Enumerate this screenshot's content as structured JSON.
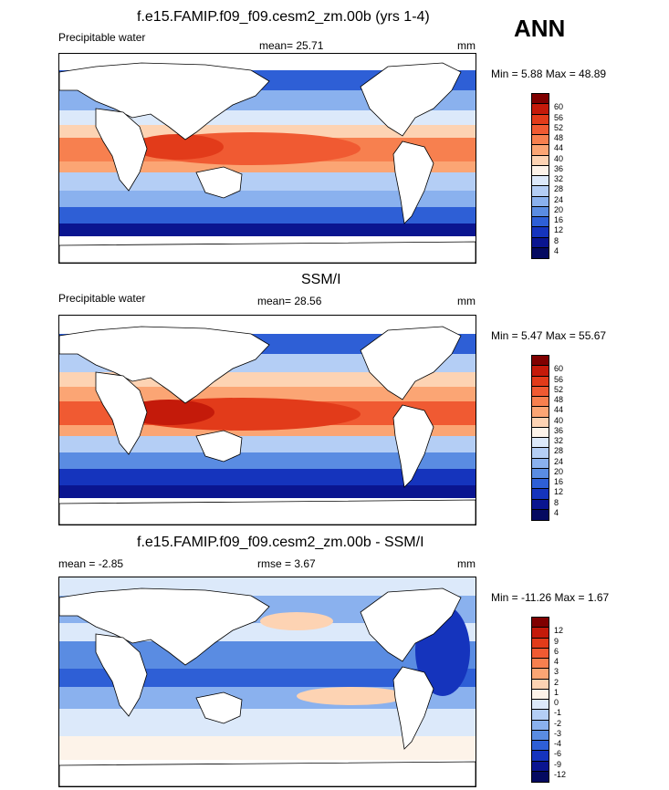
{
  "season": "ANN",
  "panels": [
    {
      "title": "f.e15.FAMIP.f09_f09.cesm2_zm.00b (yrs 1-4)",
      "left_label": "Precipitable water",
      "center_label": "mean=  25.71",
      "right_label": "mm",
      "minmax": "Min =   5.88 Max =  48.89",
      "levels": [
        "60",
        "56",
        "52",
        "48",
        "44",
        "40",
        "36",
        "32",
        "28",
        "24",
        "20",
        "16",
        "12",
        "8",
        "4"
      ],
      "colors": [
        "#800000",
        "#c41a0a",
        "#e23b1a",
        "#f05a32",
        "#f7804f",
        "#fba574",
        "#fdd3b3",
        "#fdf3e9",
        "#dce9fa",
        "#b4cef5",
        "#8ab1ee",
        "#5a8ce2",
        "#2e5fd6",
        "#1534bd",
        "#0a1590",
        "#050a60"
      ]
    },
    {
      "title": "SSM/I",
      "left_label": "Precipitable water",
      "center_label": "mean=  28.56",
      "right_label": "mm",
      "minmax": "Min =   5.47 Max =  55.67",
      "levels": [
        "60",
        "56",
        "52",
        "48",
        "44",
        "40",
        "36",
        "32",
        "28",
        "24",
        "20",
        "16",
        "12",
        "8",
        "4"
      ],
      "colors": [
        "#800000",
        "#c41a0a",
        "#e23b1a",
        "#f05a32",
        "#f7804f",
        "#fba574",
        "#fdd3b3",
        "#fdf3e9",
        "#dce9fa",
        "#b4cef5",
        "#8ab1ee",
        "#5a8ce2",
        "#2e5fd6",
        "#1534bd",
        "#0a1590",
        "#050a60"
      ]
    },
    {
      "title": "f.e15.FAMIP.f09_f09.cesm2_zm.00b - SSM/I",
      "left_label": "mean =  -2.85",
      "center_label": "rmse =   3.67",
      "right_label": "mm",
      "minmax": "Min = -11.26 Max =   1.67",
      "levels": [
        "12",
        "9",
        "6",
        "4",
        "3",
        "2",
        "1",
        "0",
        "-1",
        "-2",
        "-3",
        "-4",
        "-6",
        "-9",
        "-12"
      ],
      "colors": [
        "#800000",
        "#c41a0a",
        "#e23b1a",
        "#f05a32",
        "#f7804f",
        "#fba574",
        "#fdd3b3",
        "#fdf3e9",
        "#dce9fa",
        "#b4cef5",
        "#8ab1ee",
        "#5a8ce2",
        "#2e5fd6",
        "#1534bd",
        "#0a1590",
        "#050a60"
      ]
    }
  ]
}
